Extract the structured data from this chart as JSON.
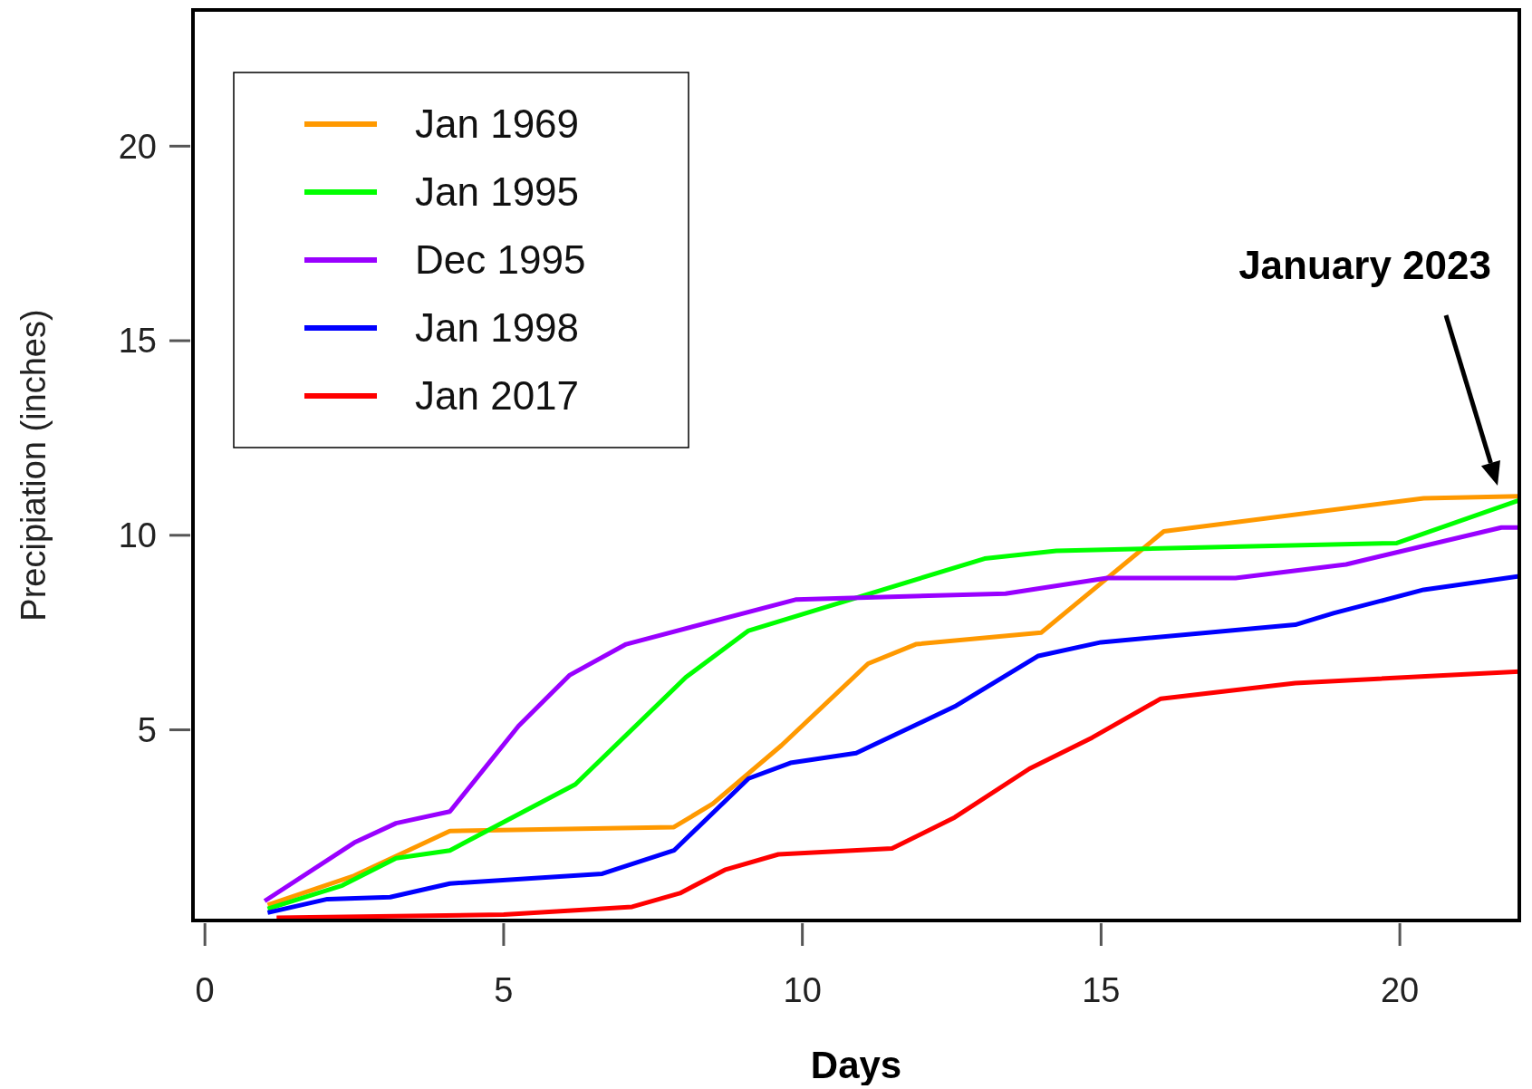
{
  "chart_data": {
    "type": "line",
    "xlabel": "Days",
    "ylabel": "Precipiation (inches)",
    "xlim": [
      -0.2,
      22
    ],
    "ylim": [
      0.1,
      23.5
    ],
    "xticks": [
      0,
      5,
      10,
      15,
      20
    ],
    "yticks": [
      5,
      10,
      15,
      20
    ],
    "legend": "top left",
    "grid": false,
    "marker": "none",
    "line_style": "solid",
    "annotations": [
      "January 2023"
    ],
    "series": [
      {
        "name": "Jan 1969",
        "color": "#ff9900",
        "x": [
          1.05,
          2.5,
          4.1,
          7.85,
          8.5,
          9.65,
          11.1,
          11.9,
          14.0,
          16.05,
          20.4,
          22.0
        ],
        "values": [
          0.5,
          1.25,
          2.4,
          2.5,
          3.1,
          4.6,
          6.7,
          7.2,
          7.5,
          10.1,
          10.95,
          11.0
        ]
      },
      {
        "name": "Jan 1995",
        "color": "#00ff00",
        "x": [
          1.05,
          2.3,
          3.2,
          4.1,
          6.2,
          8.05,
          9.1,
          13.05,
          14.25,
          19.95,
          22.0
        ],
        "values": [
          0.4,
          1.0,
          1.7,
          1.9,
          3.6,
          6.35,
          7.55,
          9.4,
          9.6,
          9.8,
          10.9
        ]
      },
      {
        "name": "Dec 1995",
        "color": "#9900ff",
        "x": [
          1.0,
          2.5,
          3.2,
          4.1,
          5.25,
          6.1,
          7.05,
          9.9,
          13.4,
          15.1,
          17.25,
          19.1,
          21.7,
          22.0
        ],
        "values": [
          0.6,
          2.1,
          2.6,
          2.9,
          5.1,
          6.4,
          7.2,
          8.35,
          8.5,
          8.9,
          8.9,
          9.25,
          10.2,
          10.2
        ]
      },
      {
        "name": "Jan 1998",
        "color": "#0000ff",
        "x": [
          1.05,
          2.05,
          3.1,
          4.1,
          6.65,
          7.85,
          9.1,
          9.8,
          10.9,
          12.55,
          13.95,
          15.0,
          18.25,
          18.9,
          20.4,
          22.0
        ],
        "values": [
          0.3,
          0.65,
          0.7,
          1.05,
          1.3,
          1.9,
          3.75,
          4.15,
          4.4,
          5.6,
          6.9,
          7.25,
          7.7,
          8.0,
          8.6,
          8.95
        ]
      },
      {
        "name": "Jan 2017",
        "color": "#ff0000",
        "x": [
          1.2,
          5.0,
          7.15,
          7.95,
          8.7,
          9.6,
          11.5,
          12.55,
          13.8,
          14.85,
          16.0,
          18.25,
          22.0
        ],
        "values": [
          0.17,
          0.25,
          0.45,
          0.8,
          1.4,
          1.8,
          1.95,
          2.75,
          4.0,
          4.8,
          5.8,
          6.2,
          6.5
        ]
      }
    ]
  }
}
